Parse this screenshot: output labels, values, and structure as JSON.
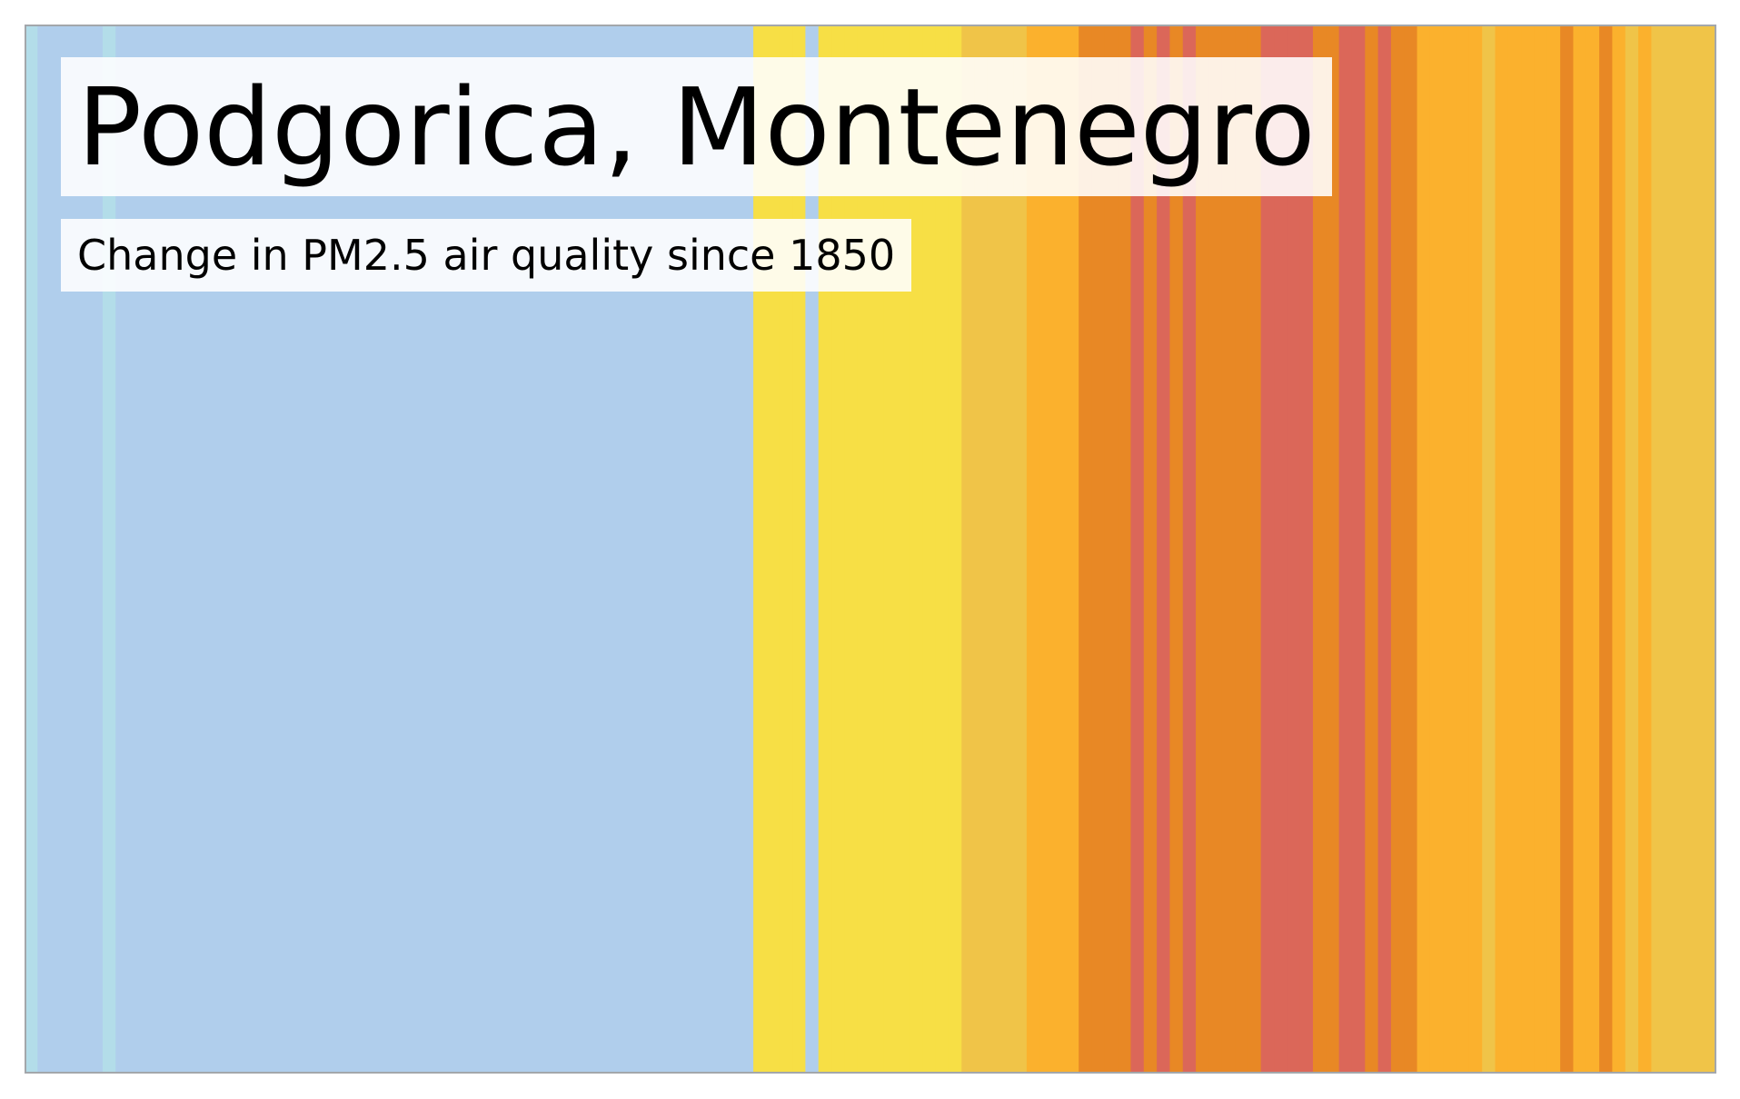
{
  "chart_data": {
    "type": "heatmap",
    "title": "Podgorica, Montenegro",
    "subtitle": "Change in PM2.5 air quality since 1850",
    "grid": false,
    "stripes": [
      {
        "color": "#b3dde9",
        "count": 1
      },
      {
        "color": "#b0ceec",
        "count": 5
      },
      {
        "color": "#b3dde9",
        "count": 1
      },
      {
        "color": "#b0ceec",
        "count": 49
      },
      {
        "color": "#f7df45",
        "count": 4
      },
      {
        "color": "#b0ceec",
        "count": 1
      },
      {
        "color": "#f7df45",
        "count": 11
      },
      {
        "color": "#f0c448",
        "count": 5
      },
      {
        "color": "#fbb12d",
        "count": 4
      },
      {
        "color": "#e88825",
        "count": 4
      },
      {
        "color": "#db6759",
        "count": 1
      },
      {
        "color": "#e88825",
        "count": 1
      },
      {
        "color": "#db6759",
        "count": 1
      },
      {
        "color": "#e88825",
        "count": 1
      },
      {
        "color": "#db6759",
        "count": 1
      },
      {
        "color": "#e88825",
        "count": 5
      },
      {
        "color": "#db6759",
        "count": 4
      },
      {
        "color": "#e88825",
        "count": 2
      },
      {
        "color": "#db6759",
        "count": 2
      },
      {
        "color": "#e88825",
        "count": 1
      },
      {
        "color": "#db6759",
        "count": 1
      },
      {
        "color": "#e88825",
        "count": 2
      },
      {
        "color": "#fbb12d",
        "count": 5
      },
      {
        "color": "#f0c448",
        "count": 1
      },
      {
        "color": "#fbb12d",
        "count": 5
      },
      {
        "color": "#e88825",
        "count": 1
      },
      {
        "color": "#fbb12d",
        "count": 2
      },
      {
        "color": "#e88825",
        "count": 1
      },
      {
        "color": "#fbb12d",
        "count": 1
      },
      {
        "color": "#f0c448",
        "count": 1
      },
      {
        "color": "#fbb12d",
        "count": 1
      },
      {
        "color": "#f0c448",
        "count": 5
      }
    ]
  }
}
